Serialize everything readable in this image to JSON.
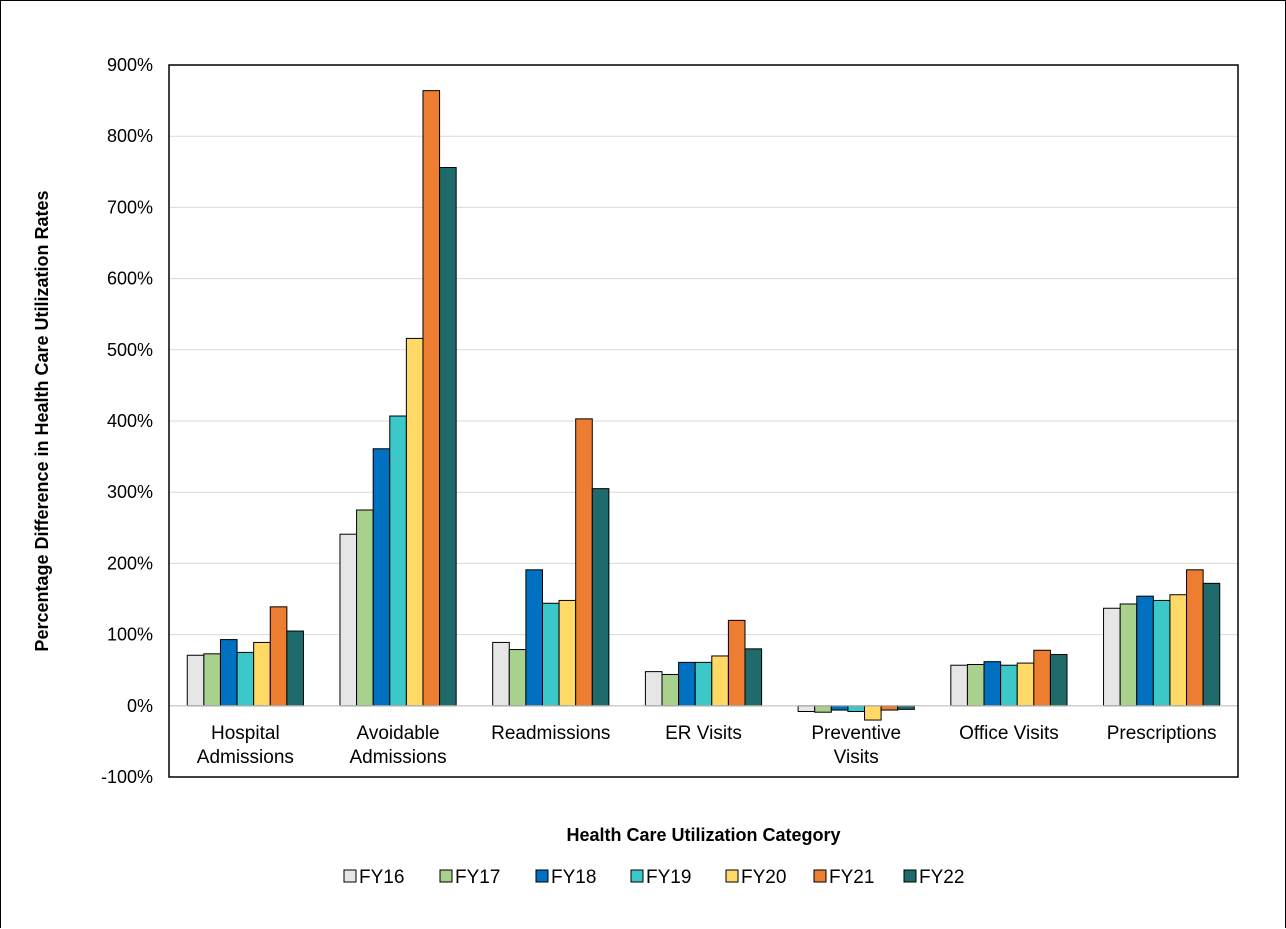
{
  "chart_data": {
    "type": "bar",
    "title": "",
    "xlabel": "Health Care Utilization Category",
    "ylabel": "Percentage Difference in Health Care Utilization Rates",
    "ylim": [
      -100,
      900
    ],
    "yticks": [
      -100,
      0,
      100,
      200,
      300,
      400,
      500,
      600,
      700,
      800,
      900
    ],
    "ytick_labels": [
      "-100%",
      "0%",
      "100%",
      "200%",
      "300%",
      "400%",
      "500%",
      "600%",
      "700%",
      "800%",
      "900%"
    ],
    "grid": true,
    "legend_position": "bottom",
    "categories": [
      [
        "Hospital",
        "Admissions"
      ],
      [
        "Avoidable",
        "Admissions"
      ],
      [
        "Readmissions"
      ],
      [
        "ER Visits"
      ],
      [
        "Preventive",
        "Visits"
      ],
      [
        "Office Visits"
      ],
      [
        "Prescriptions"
      ]
    ],
    "series": [
      {
        "name": "FY16",
        "color": "#e6e6e6",
        "values": [
          71,
          241,
          89,
          48,
          -8,
          57,
          137
        ]
      },
      {
        "name": "FY17",
        "color": "#a9d18e",
        "values": [
          73,
          275,
          79,
          44,
          -9,
          58,
          143
        ]
      },
      {
        "name": "FY18",
        "color": "#0070c0",
        "values": [
          93,
          361,
          191,
          61,
          -6,
          62,
          154
        ]
      },
      {
        "name": "FY19",
        "color": "#3cc8c8",
        "values": [
          75,
          407,
          144,
          61,
          -8,
          57,
          148
        ]
      },
      {
        "name": "FY20",
        "color": "#ffd966",
        "values": [
          89,
          516,
          148,
          70,
          -20,
          60,
          156
        ]
      },
      {
        "name": "FY21",
        "color": "#ed7d31",
        "values": [
          139,
          864,
          403,
          120,
          -6,
          78,
          191
        ]
      },
      {
        "name": "FY22",
        "color": "#1f6b6b",
        "values": [
          105,
          756,
          305,
          80,
          -5,
          72,
          172
        ]
      }
    ]
  }
}
